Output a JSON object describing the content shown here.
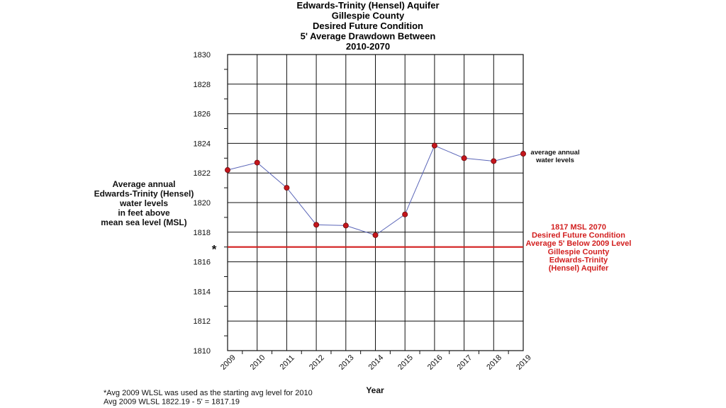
{
  "chart_data": {
    "type": "line",
    "title_lines": [
      "Edwards-Trinity (Hensel) Aquifer",
      "Gillespie County",
      "Desired Future Condition",
      "5' Average Drawdown Between",
      "2010-2070"
    ],
    "xlabel": "Year",
    "ylabel_lines": [
      "Average annual",
      "Edwards-Trinity (Hensel)",
      "water levels",
      "in feet above",
      "mean sea level (MSL)"
    ],
    "x": [
      2009,
      2010,
      2011,
      2012,
      2013,
      2014,
      2015,
      2016,
      2017,
      2018,
      2019
    ],
    "ylim": [
      1810,
      1830
    ],
    "yticks": [
      1810,
      1812,
      1814,
      1816,
      1818,
      1820,
      1822,
      1824,
      1826,
      1828,
      1830
    ],
    "grid": true,
    "series": [
      {
        "values": [
          1822.2,
          1822.7,
          1821.0,
          1818.5,
          1818.45,
          1817.8,
          1819.2,
          1823.85,
          1823.0,
          1822.8,
          1823.3
        ],
        "line_color": "#5b66b8",
        "marker_color": "#c4161c"
      }
    ],
    "series_label_lines": [
      "average annual",
      "water levels"
    ],
    "reference_line": {
      "value": 1817,
      "color": "#d21f1f",
      "marker": "*",
      "label_lines": [
        "1817 MSL 2070",
        "Desired Future Condition",
        "Average 5' Below 2009 Level",
        "Gillespie County",
        "Edwards-Trinity",
        "(Hensel) Aquifer"
      ]
    },
    "footnotes": [
      "*Avg 2009 WLSL was used as the starting avg level for 2010",
      " Avg 2009 WLSL 1822.19 - 5' = 1817.19"
    ]
  }
}
